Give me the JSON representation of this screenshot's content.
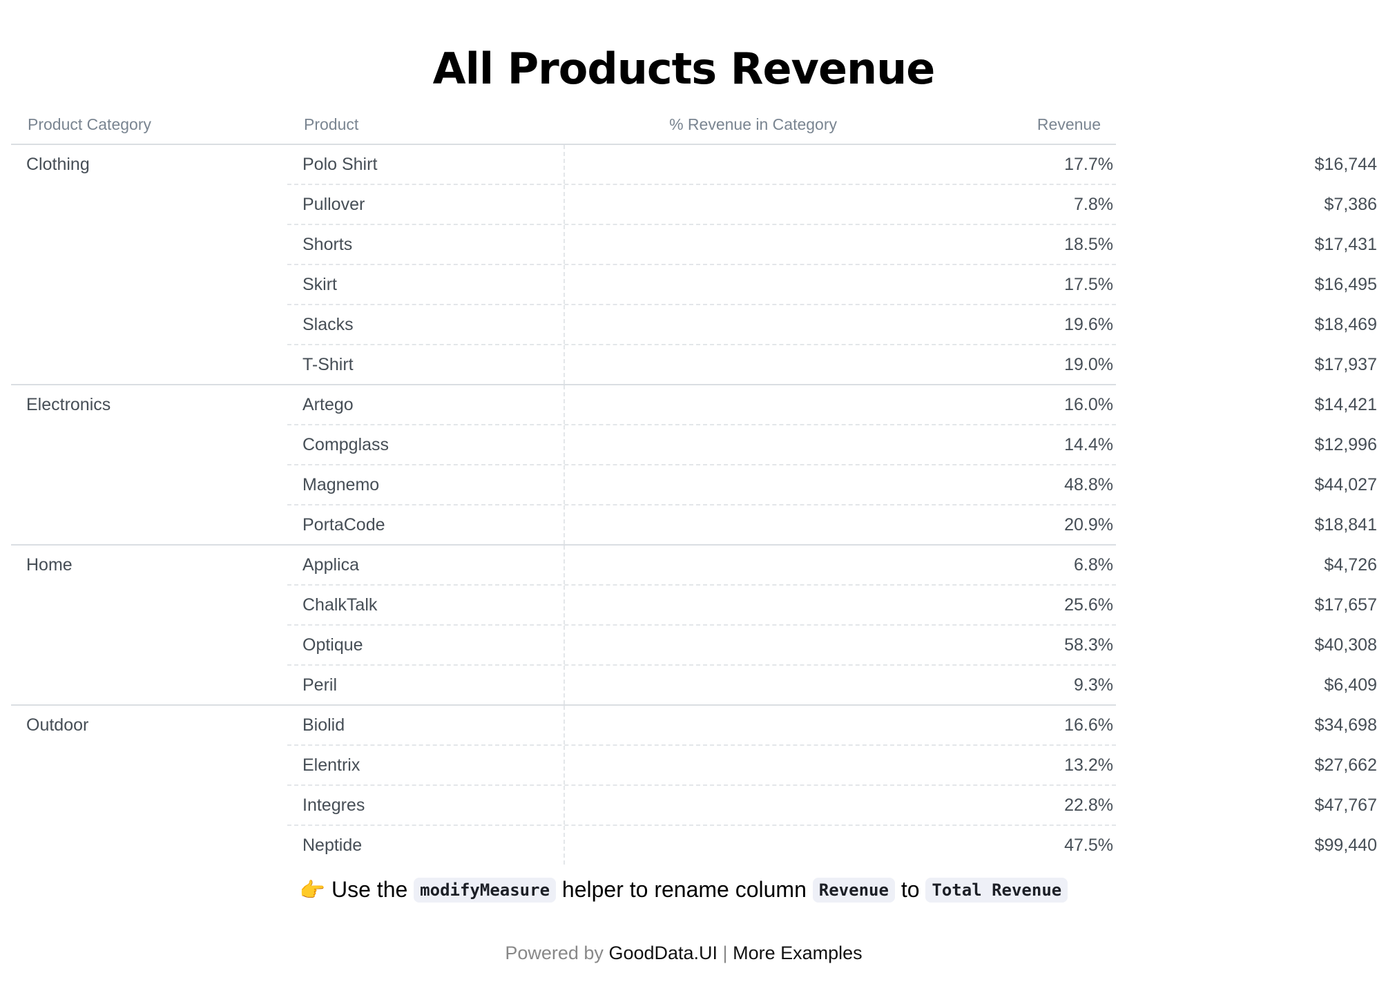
{
  "title": "All Products Revenue",
  "table": {
    "headers": {
      "category": "Product Category",
      "product": "Product",
      "pct": "% Revenue in Category",
      "revenue": "Revenue"
    },
    "groups": [
      {
        "category": "Clothing",
        "rows": [
          {
            "product": "Polo Shirt",
            "pct": "17.7%",
            "revenue": "$16,744"
          },
          {
            "product": "Pullover",
            "pct": "7.8%",
            "revenue": "$7,386"
          },
          {
            "product": "Shorts",
            "pct": "18.5%",
            "revenue": "$17,431"
          },
          {
            "product": "Skirt",
            "pct": "17.5%",
            "revenue": "$16,495"
          },
          {
            "product": "Slacks",
            "pct": "19.6%",
            "revenue": "$18,469"
          },
          {
            "product": "T-Shirt",
            "pct": "19.0%",
            "revenue": "$17,937"
          }
        ]
      },
      {
        "category": "Electronics",
        "rows": [
          {
            "product": "Artego",
            "pct": "16.0%",
            "revenue": "$14,421"
          },
          {
            "product": "Compglass",
            "pct": "14.4%",
            "revenue": "$12,996"
          },
          {
            "product": "Magnemo",
            "pct": "48.8%",
            "revenue": "$44,027"
          },
          {
            "product": "PortaCode",
            "pct": "20.9%",
            "revenue": "$18,841"
          }
        ]
      },
      {
        "category": "Home",
        "rows": [
          {
            "product": "Applica",
            "pct": "6.8%",
            "revenue": "$4,726"
          },
          {
            "product": "ChalkTalk",
            "pct": "25.6%",
            "revenue": "$17,657"
          },
          {
            "product": "Optique",
            "pct": "58.3%",
            "revenue": "$40,308"
          },
          {
            "product": "Peril",
            "pct": "9.3%",
            "revenue": "$6,409"
          }
        ]
      },
      {
        "category": "Outdoor",
        "rows": [
          {
            "product": "Biolid",
            "pct": "16.6%",
            "revenue": "$34,698"
          },
          {
            "product": "Elentrix",
            "pct": "13.2%",
            "revenue": "$27,662"
          },
          {
            "product": "Integres",
            "pct": "22.8%",
            "revenue": "$47,767"
          },
          {
            "product": "Neptide",
            "pct": "47.5%",
            "revenue": "$99,440"
          }
        ]
      }
    ]
  },
  "hint": {
    "icon": "pointing-right-hand-icon",
    "emoji": "👉",
    "text_1": "Use the",
    "code_1": "modifyMeasure",
    "text_2": "helper to rename column",
    "code_2": "Revenue",
    "text_3": "to",
    "code_3": "Total Revenue"
  },
  "footer": {
    "powered_by": "Powered by",
    "brand_link": "GoodData.UI",
    "separator": "|",
    "more_link": "More Examples"
  }
}
